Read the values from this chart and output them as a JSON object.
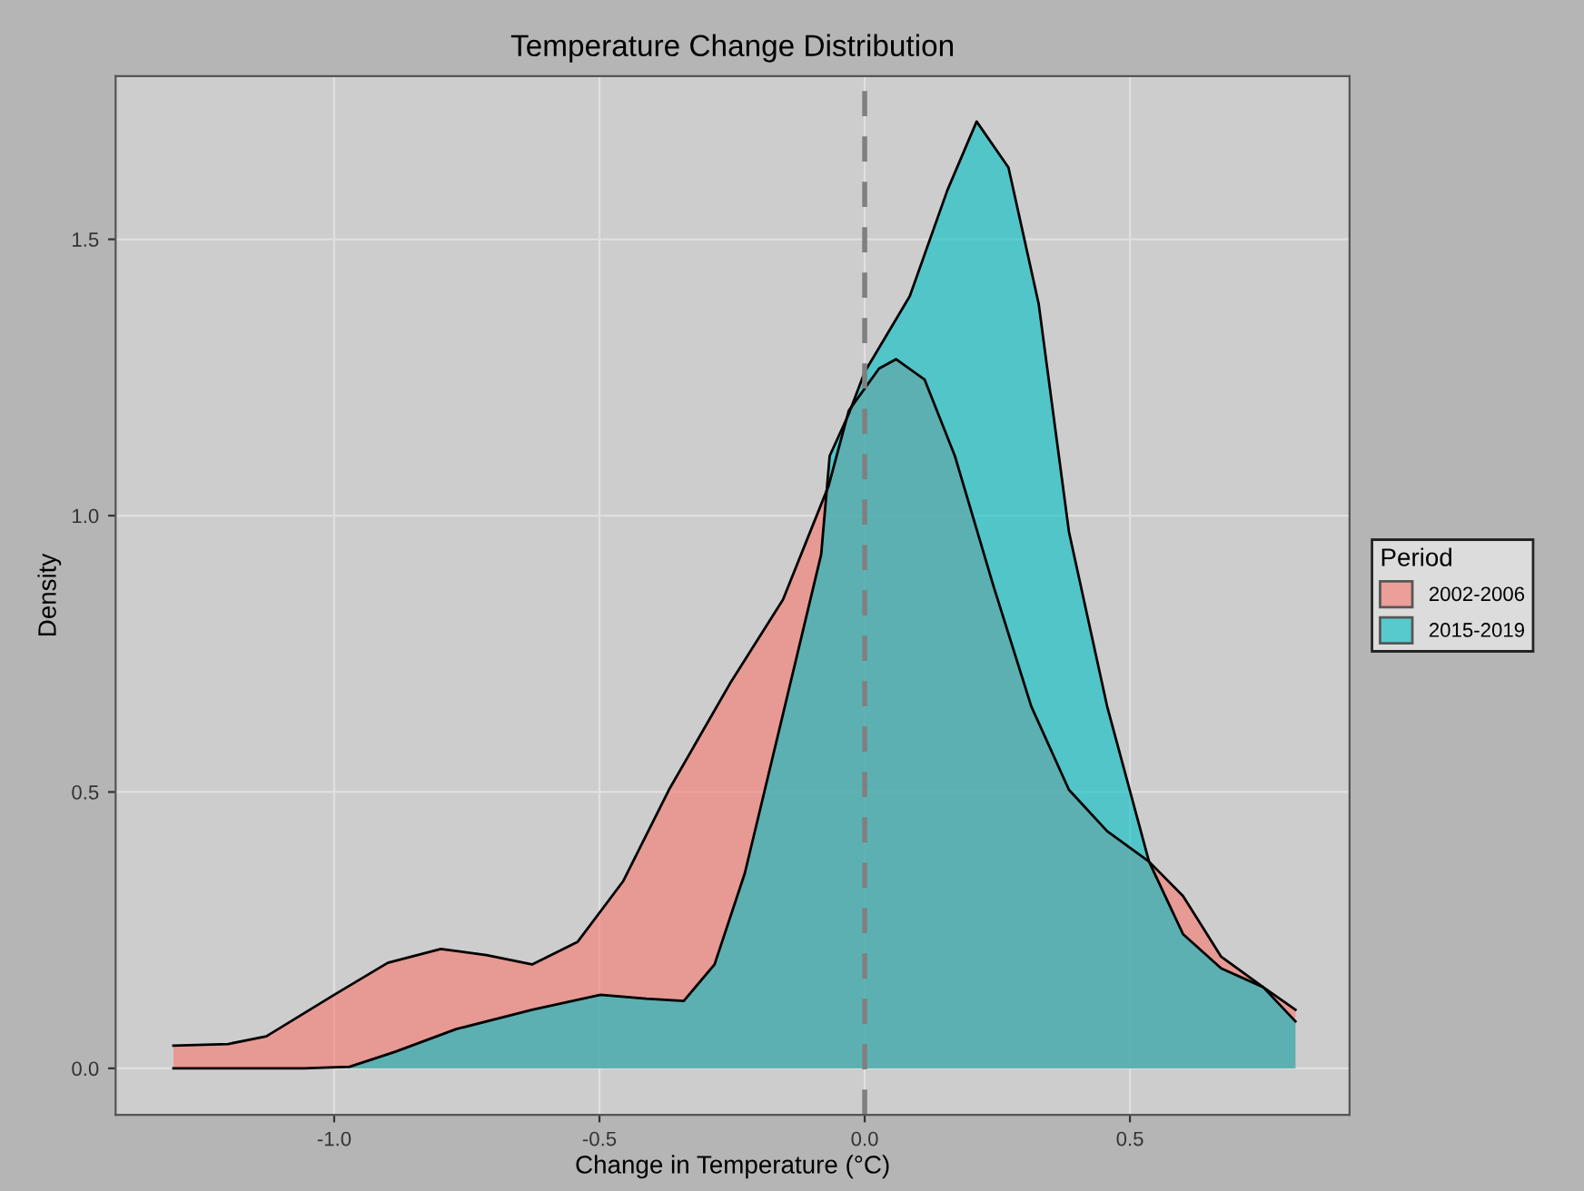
{
  "chart_data": {
    "type": "area",
    "title": "Temperature Change Distribution",
    "xlabel": "Change in Temperature (°C)",
    "ylabel": "Density",
    "legend_title": "Period",
    "legend": "right",
    "grid": true,
    "xlim": [
      -1.412,
      0.914
    ],
    "ylim": [
      -0.084,
      1.795
    ],
    "xticks": [
      {
        "value": -1.0,
        "label": "-1.0"
      },
      {
        "value": -0.5,
        "label": "-0.5"
      },
      {
        "value": 0.0,
        "label": "0.0"
      },
      {
        "value": 0.5,
        "label": "0.5"
      }
    ],
    "yticks": [
      {
        "value": 0.0,
        "label": "0.0"
      },
      {
        "value": 0.5,
        "label": "0.5"
      },
      {
        "value": 1.0,
        "label": "1.0"
      },
      {
        "value": 1.5,
        "label": "1.5"
      }
    ],
    "ref_lines": [
      {
        "axis": "x",
        "value": 0.0,
        "label": null,
        "color": "#808080",
        "line_style": "dashed"
      }
    ],
    "series": [
      {
        "name": "2002-2006",
        "color": "#F8766D",
        "x": [
          -1.303,
          -1.2,
          -1.128,
          -1.0,
          -0.899,
          -0.799,
          -0.713,
          -0.627,
          -0.541,
          -0.455,
          -0.369,
          -0.254,
          -0.154,
          -0.068,
          -0.03,
          0.027,
          0.059,
          0.113,
          0.17,
          0.242,
          0.314,
          0.385,
          0.457,
          0.536,
          0.6,
          0.672,
          0.751,
          0.812
        ],
        "values": [
          0.041,
          0.044,
          0.058,
          0.133,
          0.191,
          0.216,
          0.205,
          0.188,
          0.229,
          0.339,
          0.504,
          0.696,
          0.848,
          1.054,
          1.19,
          1.266,
          1.283,
          1.246,
          1.108,
          0.875,
          0.655,
          0.504,
          0.429,
          0.374,
          0.312,
          0.202,
          0.147,
          0.106
        ]
      },
      {
        "name": "2015-2019",
        "color": "#00BFC4",
        "x": [
          -1.303,
          -1.057,
          -0.971,
          -0.885,
          -0.77,
          -0.627,
          -0.498,
          -0.412,
          -0.341,
          -0.283,
          -0.226,
          -0.154,
          -0.082,
          -0.066,
          -0.03,
          0.0,
          0.085,
          0.156,
          0.211,
          0.271,
          0.328,
          0.385,
          0.457,
          0.536,
          0.6,
          0.672,
          0.751,
          0.812
        ],
        "values": [
          0.0,
          0.0,
          0.003,
          0.03,
          0.071,
          0.106,
          0.133,
          0.126,
          0.122,
          0.188,
          0.353,
          0.641,
          0.93,
          1.108,
          1.184,
          1.26,
          1.397,
          1.589,
          1.713,
          1.63,
          1.383,
          0.971,
          0.655,
          0.374,
          0.243,
          0.181,
          0.147,
          0.085
        ]
      }
    ]
  }
}
